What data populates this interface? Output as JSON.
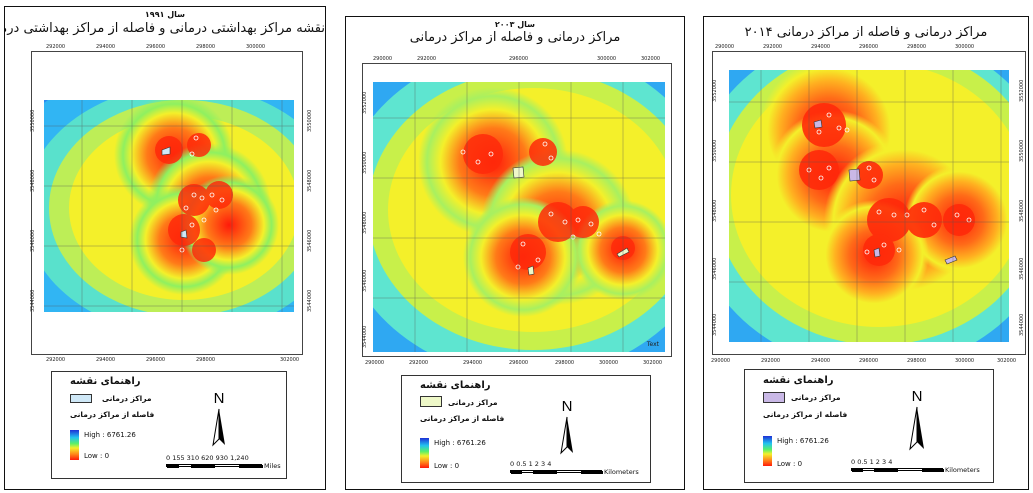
{
  "palette": {
    "high_label_color": "#1d2fd6",
    "far_color": "#1d6df0",
    "mid_color": "#f4f02a",
    "near_color": "#ff1a0a"
  },
  "panels": [
    {
      "year_label": "سال ۱۹۹۱",
      "title": "نقشه مراکز بهداشتی درمانی و فاصله از مراکز بهداشتی درمانی",
      "x_ticks": [
        "292000",
        "294000",
        "296000",
        "298000",
        "300000",
        "302000"
      ],
      "y_ticks": [
        "3550000",
        "3548000",
        "3546000",
        "3544000",
        "3542000"
      ],
      "legend": {
        "title": "راهنمای نقشه",
        "centers_label": "مراکز درمانی",
        "distance_label": "فاصله از مراکز درمانی",
        "high": "High : 6761.26",
        "low": "Low : 0",
        "swatch_color": "#cfe8f7"
      },
      "north": "N",
      "scale": {
        "numbers": "0  155 310     620     930     1,240",
        "unit": "Miles"
      },
      "extra_text": ""
    },
    {
      "year_label": "سال ۲۰۰۳",
      "title": "مراکز درمانی و فاصله از مراکز درمانی",
      "x_ticks": [
        "290000",
        "292000",
        "294000",
        "296000",
        "298000",
        "300000",
        "302000"
      ],
      "y_ticks": [
        "3552000",
        "3550000",
        "3548000",
        "3546000",
        "3544000"
      ],
      "legend": {
        "title": "راهنمای نقشه",
        "centers_label": "مراکز درمانی",
        "distance_label": "فاصله از مراکز درمانی",
        "high": "High : 6761.26",
        "low": "Low : 0",
        "swatch_color": "#eef8c8"
      },
      "north": "N",
      "scale": {
        "numbers": "0  0.5  1       2        3        4",
        "unit": "Kilometers"
      },
      "extra_text": "Text"
    },
    {
      "year_label": "",
      "title": "مراکز درمانی و فاصله از مراکز درمانی ۲۰۱۴",
      "x_ticks": [
        "290000",
        "292000",
        "294000",
        "296000",
        "298000",
        "300000",
        "302000"
      ],
      "y_ticks": [
        "3552000",
        "3550000",
        "3548000",
        "3546000",
        "3544000"
      ],
      "legend": {
        "title": "راهنمای نقشه",
        "centers_label": "مراکز درمانی",
        "distance_label": "فاصله از مراکز درمانی",
        "high": "High : 6761.26",
        "low": "Low : 0",
        "swatch_color": "#c9b8e6"
      },
      "north": "N",
      "scale": {
        "numbers": "0  0.5  1       2        3        4",
        "unit": "Kilometers"
      },
      "extra_text": ""
    }
  ]
}
